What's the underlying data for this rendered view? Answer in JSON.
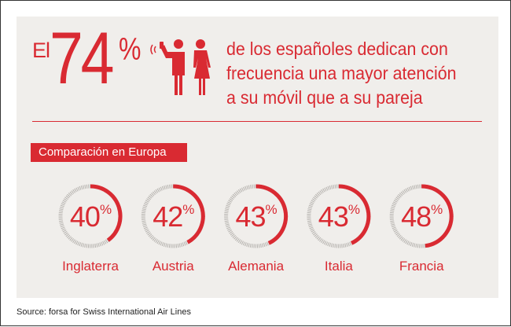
{
  "headline": {
    "prefix": "El",
    "value": "74",
    "unit": "%",
    "text_lines": [
      "de los españoles dedican con",
      "frecuencia una mayor atención",
      "a su móvil que a su pareja"
    ],
    "icon": "couple-with-phone-icon"
  },
  "section_title": "Comparación en Europa",
  "chart_data": {
    "type": "gauge",
    "title": "Comparación en Europa",
    "categories": [
      "Inglaterra",
      "Austria",
      "Alemania",
      "Italia",
      "Francia"
    ],
    "values": [
      40,
      42,
      43,
      43,
      48
    ],
    "value_labels": [
      "40",
      "42",
      "43",
      "43",
      "48"
    ],
    "unit": "%",
    "range": [
      0,
      100
    ],
    "colors": {
      "fill": "#d92a32",
      "track": "#b5b2ae"
    }
  },
  "source": "Source: forsa for Swiss International Air Lines",
  "colors": {
    "accent": "#d92a32",
    "panel": "#f0eeeb"
  }
}
